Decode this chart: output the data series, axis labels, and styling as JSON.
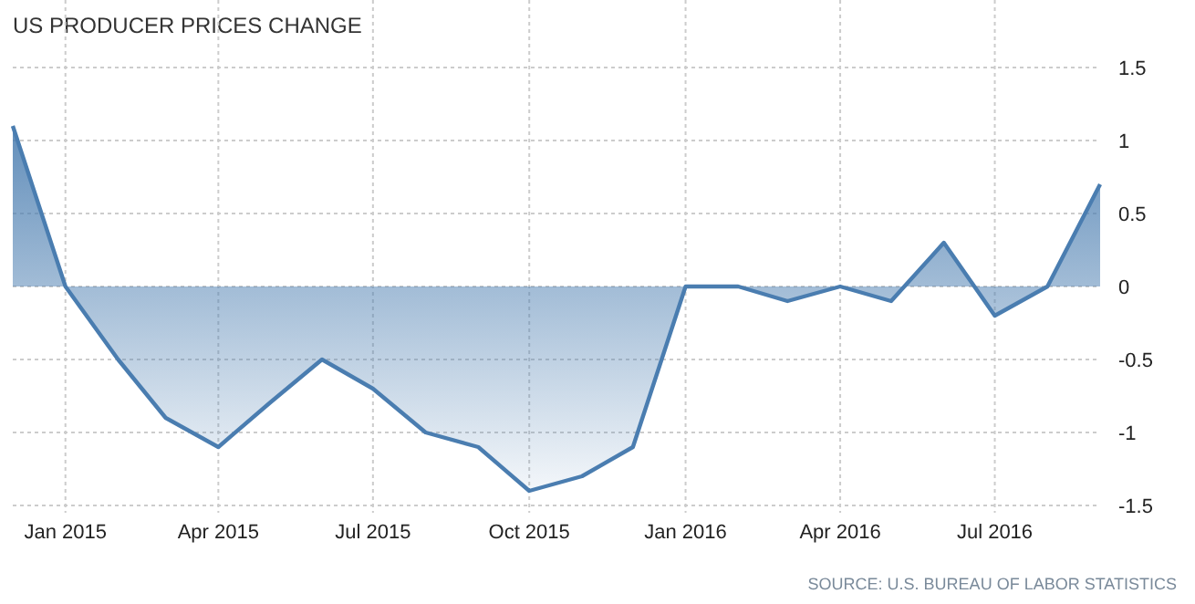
{
  "chart_data": {
    "type": "area",
    "title": "US PRODUCER PRICES CHANGE",
    "x": [
      "2014-12",
      "2015-01",
      "2015-02",
      "2015-03",
      "2015-04",
      "2015-05",
      "2015-06",
      "2015-07",
      "2015-08",
      "2015-09",
      "2015-10",
      "2015-11",
      "2015-12",
      "2016-01",
      "2016-02",
      "2016-03",
      "2016-04",
      "2016-05",
      "2016-06",
      "2016-07",
      "2016-08",
      "2016-09"
    ],
    "series": [
      {
        "color": "#4a7db0",
        "values": [
          1.1,
          0,
          -0.5,
          -0.9,
          -1.1,
          -0.8,
          -0.5,
          -0.7,
          -1.0,
          -1.1,
          -1.4,
          -1.3,
          -1.1,
          0,
          0,
          -0.1,
          0,
          -0.1,
          0.3,
          -0.2,
          0,
          0.7
        ]
      }
    ],
    "xlim": [
      "2014-12",
      "2016-09"
    ],
    "xticks": [
      {
        "value": "2015-01",
        "label": "Jan 2015"
      },
      {
        "value": "2015-04",
        "label": "Apr 2015"
      },
      {
        "value": "2015-07",
        "label": "Jul 2015"
      },
      {
        "value": "2015-10",
        "label": "Oct 2015"
      },
      {
        "value": "2016-01",
        "label": "Jan 2016"
      },
      {
        "value": "2016-04",
        "label": "Apr 2016"
      },
      {
        "value": "2016-07",
        "label": "Jul 2016"
      }
    ],
    "ylim": [
      -1.5,
      1.5
    ],
    "yticks": [
      -1.5,
      -1,
      -0.5,
      0,
      0.5,
      1,
      1.5
    ],
    "grid": true,
    "line_style": "solid",
    "marker": "none",
    "annotations": [
      "SOURCE: U.S. BUREAU OF LABOR STATISTICS"
    ]
  }
}
